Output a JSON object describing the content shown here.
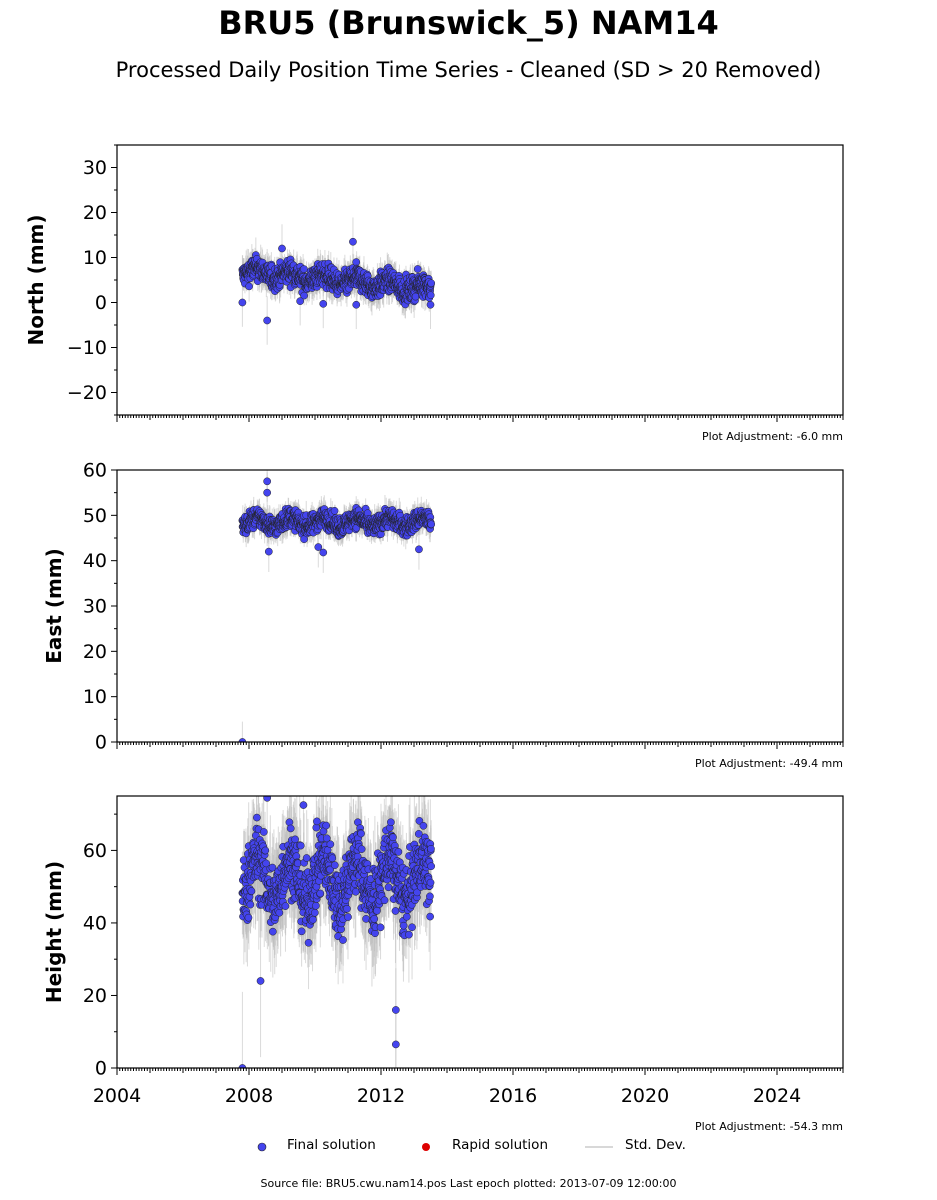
{
  "title": "BRU5 (Brunswick_5) NAM14",
  "subtitle": "Processed Daily Position Time Series - Cleaned (SD > 20 Removed)",
  "footer": "Source file: BRU5.cwu.nam14.pos  Last epoch plotted: 2013-07-09 12:00:00",
  "legend": {
    "final": "Final solution",
    "rapid": "Rapid solution",
    "std": "Std. Dev."
  },
  "colors": {
    "final": "#4444ee",
    "rapid": "#dd0000",
    "std": "#bbbbbb"
  },
  "chart_data": [
    {
      "type": "scatter",
      "ylabel": "North (mm)",
      "adjustment": "Plot Adjustment: -6.0 mm",
      "xlim": [
        2004,
        2026
      ],
      "ylim": [
        -25,
        35
      ],
      "yticks": [
        -20,
        -10,
        0,
        10,
        20,
        30
      ],
      "xticks": [],
      "series_summary": {
        "start": 2007.8,
        "end": 2013.52,
        "level_start": 7,
        "level_end": 3,
        "noise": 1.8
      },
      "outliers": [
        [
          2007.8,
          0
        ],
        [
          2008.55,
          -4
        ],
        [
          2009.0,
          12
        ],
        [
          2009.55,
          0.3
        ],
        [
          2010.25,
          -0.3
        ],
        [
          2011.15,
          13.5
        ],
        [
          2011.25,
          -0.5
        ],
        [
          2013.5,
          -0.5
        ]
      ]
    },
    {
      "type": "scatter",
      "ylabel": "East (mm)",
      "adjustment": "Plot Adjustment: -49.4 mm",
      "xlim": [
        2004,
        2026
      ],
      "ylim": [
        0,
        60
      ],
      "yticks": [
        0,
        10,
        20,
        30,
        40,
        50,
        60
      ],
      "xticks": [],
      "series_summary": {
        "start": 2007.8,
        "end": 2013.52,
        "level_start": 48.5,
        "level_end": 48.5,
        "noise": 1.5
      },
      "outliers": [
        [
          2007.8,
          0
        ],
        [
          2008.55,
          57.5
        ],
        [
          2008.55,
          55
        ],
        [
          2008.6,
          42
        ],
        [
          2010.1,
          43
        ],
        [
          2010.25,
          41.8
        ],
        [
          2013.15,
          42.5
        ]
      ]
    },
    {
      "type": "scatter",
      "ylabel": "Height (mm)",
      "adjustment": "Plot Adjustment: -54.3 mm",
      "xlim": [
        2004,
        2026
      ],
      "ylim": [
        0,
        75
      ],
      "yticks": [
        0,
        20,
        40,
        60
      ],
      "xticks": [
        "2004",
        "2008",
        "2012",
        "2016",
        "2020",
        "2024"
      ],
      "xtick_values": [
        2004,
        2008,
        2012,
        2016,
        2020,
        2024
      ],
      "series_summary": {
        "start": 2007.8,
        "end": 2013.52,
        "level_start": 52,
        "level_end": 52,
        "noise": 7
      },
      "outliers": [
        [
          2007.8,
          0
        ],
        [
          2008.35,
          24
        ],
        [
          2008.55,
          74.5
        ],
        [
          2009.65,
          72.5
        ],
        [
          2012.45,
          6.5
        ],
        [
          2012.45,
          16
        ]
      ]
    }
  ]
}
